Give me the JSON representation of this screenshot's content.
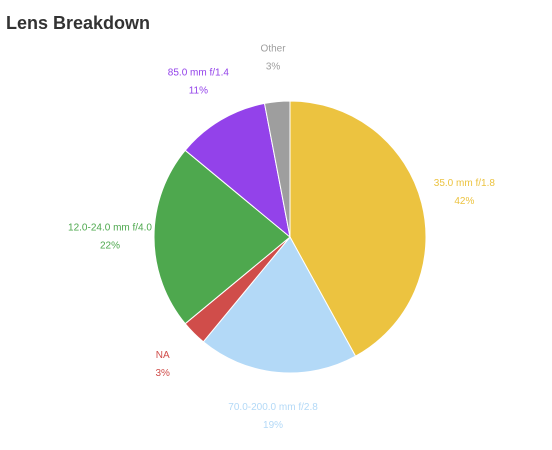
{
  "chart_data": {
    "type": "pie",
    "title": "Lens Breakdown",
    "categories": [
      "35.0 mm f/1.8",
      "70.0-200.0 mm f/2.8",
      "NA",
      "12.0-24.0 mm f/4.0",
      "85.0 mm f/1.4",
      "Other"
    ],
    "values": [
      42,
      19,
      3,
      22,
      11,
      3
    ],
    "value_labels": [
      "42%",
      "19%",
      "3%",
      "22%",
      "11%",
      "3%"
    ],
    "colors": [
      "#ecc340",
      "#b3d9f7",
      "#d04d4a",
      "#4ea84e",
      "#9342ea",
      "#9e9e9e"
    ]
  }
}
